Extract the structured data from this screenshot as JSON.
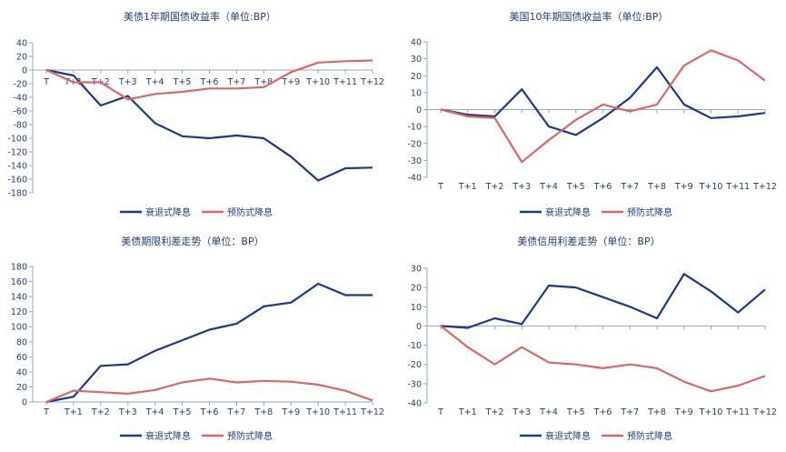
{
  "colors": {
    "recession": "#1a3a8c",
    "preventive": "#e06666",
    "axis": "#8fa8c8",
    "text": "#1f3f7a"
  },
  "chart_data": [
    {
      "type": "line",
      "title": "美债1年期国债收益率（单位:BP）",
      "categories": [
        "T",
        "T+1",
        "T+2",
        "T+3",
        "T+4",
        "T+5",
        "T+6",
        "T+7",
        "T+8",
        "T+9",
        "T+10",
        "T+11",
        "T+12"
      ],
      "ylim": [
        -180,
        40
      ],
      "yticks": [
        40,
        20,
        0,
        -20,
        -40,
        -60,
        -80,
        -100,
        -120,
        -140,
        -160,
        -180
      ],
      "series": [
        {
          "name": "衰退式降息",
          "values": [
            0,
            -8,
            -52,
            -38,
            -78,
            -97,
            -100,
            -96,
            -100,
            -127,
            -162,
            -144,
            -143
          ]
        },
        {
          "name": "预防式降息",
          "values": [
            0,
            -18,
            -18,
            -43,
            -35,
            -32,
            -27,
            -27,
            -25,
            -3,
            11,
            13,
            14
          ]
        }
      ]
    },
    {
      "type": "line",
      "title": "美国10年期国债收益率（单位:BP）",
      "categories": [
        "T",
        "T+1",
        "T+2",
        "T+3",
        "T+4",
        "T+5",
        "T+6",
        "T+7",
        "T+8",
        "T+9",
        "T+10",
        "T+11",
        "T+12"
      ],
      "ylim": [
        -40,
        40
      ],
      "yticks": [
        40,
        30,
        20,
        10,
        0,
        -10,
        -20,
        -30,
        -40
      ],
      "series": [
        {
          "name": "衰退式降息",
          "values": [
            0,
            -3,
            -4,
            12,
            -10,
            -15,
            -5,
            7,
            25,
            3,
            -5,
            -4,
            -2
          ]
        },
        {
          "name": "预防式降息",
          "values": [
            0,
            -4,
            -5,
            -31,
            -18,
            -6,
            3,
            -1,
            3,
            26,
            35,
            29,
            17
          ]
        }
      ]
    },
    {
      "type": "line",
      "title": "美债期限利差走势（单位：BP）",
      "categories": [
        "T",
        "T+1",
        "T+2",
        "T+3",
        "T+4",
        "T+5",
        "T+6",
        "T+7",
        "T+8",
        "T+9",
        "T+10",
        "T+11",
        "T+12"
      ],
      "ylim": [
        0,
        180
      ],
      "yticks": [
        180,
        160,
        140,
        120,
        100,
        80,
        60,
        40,
        20,
        0
      ],
      "series": [
        {
          "name": "衰退式降息",
          "values": [
            0,
            7,
            48,
            50,
            68,
            82,
            96,
            104,
            127,
            132,
            157,
            142,
            142
          ]
        },
        {
          "name": "预防式降息",
          "values": [
            0,
            15,
            13,
            11,
            16,
            26,
            31,
            26,
            28,
            27,
            23,
            15,
            2
          ]
        }
      ]
    },
    {
      "type": "line",
      "title": "美债信用利差走势（单位：BP）",
      "categories": [
        "T",
        "T+1",
        "T+2",
        "T+3",
        "T+4",
        "T+5",
        "T+6",
        "T+7",
        "T+8",
        "T+9",
        "T+10",
        "T+11",
        "T+12"
      ],
      "ylim": [
        -40,
        30
      ],
      "yticks": [
        30,
        20,
        10,
        0,
        -10,
        -20,
        -30,
        -40
      ],
      "series": [
        {
          "name": "衰退式降息",
          "values": [
            0,
            -1,
            4,
            1,
            21,
            20,
            15,
            10,
            4,
            27,
            18,
            7,
            19
          ]
        },
        {
          "name": "预防式降息",
          "values": [
            0,
            -11,
            -20,
            -11,
            -19,
            -20,
            -22,
            -20,
            -22,
            -29,
            -34,
            -31,
            -26
          ]
        }
      ]
    }
  ]
}
